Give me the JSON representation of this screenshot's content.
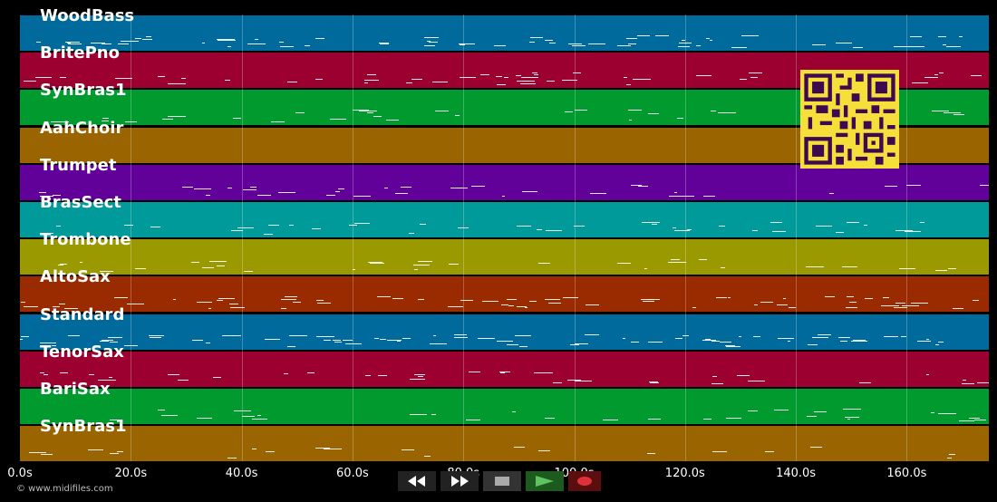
{
  "tracks": [
    {
      "name": "WoodBass",
      "color": "#006a9c"
    },
    {
      "name": "BritePno",
      "color": "#9c0030"
    },
    {
      "name": "SynBras1",
      "color": "#009a2e"
    },
    {
      "name": "AahChoir",
      "color": "#9a6400"
    },
    {
      "name": "Trumpet",
      "color": "#62009a"
    },
    {
      "name": "BrasSect",
      "color": "#009a9a"
    },
    {
      "name": "Trombone",
      "color": "#9a9a00"
    },
    {
      "name": "AltoSax",
      "color": "#9a2a00"
    },
    {
      "name": "Standard",
      "color": "#006a9c"
    },
    {
      "name": "TenorSax",
      "color": "#9c0030"
    },
    {
      "name": "BariSax",
      "color": "#009a2e"
    },
    {
      "name": "SynBras1",
      "color": "#9a6400"
    }
  ],
  "timeline": {
    "ticks": [
      "0.0s",
      "20.0s",
      "40.0s",
      "60.0s",
      "80.0s",
      "100.0s",
      "120.0s",
      "140.0s",
      "160.0s"
    ]
  },
  "copyright": "© www.midifiles.com",
  "controls": {
    "rewind": "rewind-icon",
    "fast_forward": "fast-forward-icon",
    "stop": "stop-icon",
    "play": "play-icon",
    "record": "record-icon"
  }
}
